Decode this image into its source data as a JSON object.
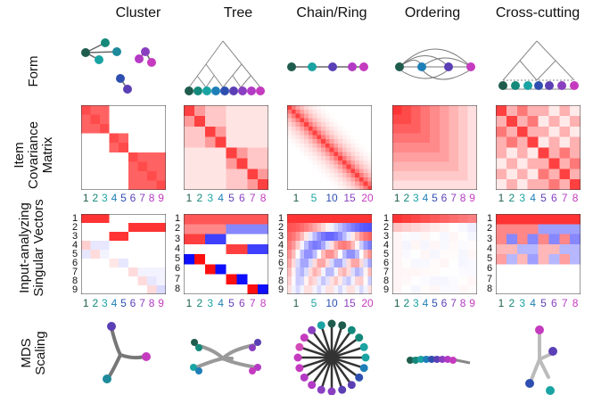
{
  "columns": [
    {
      "key": "cluster",
      "title": "Cluster"
    },
    {
      "key": "tree",
      "title": "Tree"
    },
    {
      "key": "chain",
      "title": "Chain/Ring"
    },
    {
      "key": "ordering",
      "title": "Ordering"
    },
    {
      "key": "cross",
      "title": "Cross-cutting"
    }
  ],
  "rows": {
    "form": "Form",
    "covariance_line1": "Item",
    "covariance_line2": "Covariance",
    "covariance_line3": "Matrix",
    "singular_line1": "Input-analyzing",
    "singular_line2": "Singular Vectors",
    "mds_line1": "MDS",
    "mds_line2": "Scaling"
  },
  "axis_ticks": {
    "items9": [
      "1",
      "2",
      "3",
      "4",
      "5",
      "6",
      "7",
      "8",
      "9"
    ],
    "items8": [
      "1",
      "2",
      "3",
      "4",
      "5",
      "6",
      "7",
      "8"
    ],
    "chain": [
      "1",
      "5",
      "10",
      "15",
      "20"
    ]
  },
  "singular_ylabels": {
    "cluster": [
      "1",
      "2",
      "3",
      "4",
      "5",
      "6",
      "7",
      "8",
      "9"
    ],
    "tree": [
      "1",
      "2",
      "3",
      "4",
      "5",
      "6",
      "7",
      "8"
    ],
    "chain": [
      "1",
      "2",
      "3",
      "4",
      "5",
      "6",
      "7",
      "8",
      "9"
    ],
    "ordering": [
      "1",
      "2",
      "3",
      "4",
      "5",
      "6",
      "7",
      "8",
      "9"
    ],
    "cross": [
      "1",
      "2",
      "3",
      "4",
      "5",
      "6",
      "7",
      "8"
    ]
  },
  "item_colors": [
    "#1f5c4e",
    "#14897a",
    "#1aa3a3",
    "#1e7fb8",
    "#2e4fb0",
    "#5b3fb5",
    "#8a3fc0",
    "#b33ac4",
    "#c53bbf"
  ]
}
